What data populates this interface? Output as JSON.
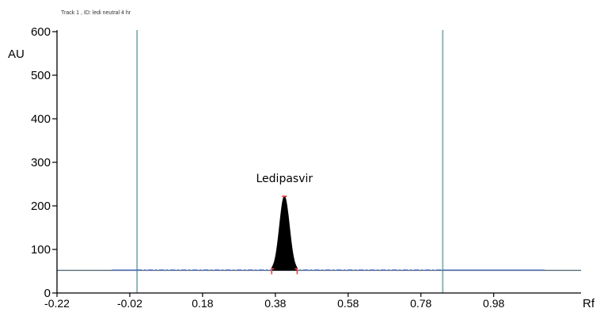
{
  "header": {
    "track_label": "Track  1 , ID: ledi neutral 4 hr"
  },
  "chart_data": {
    "type": "line",
    "title": "",
    "xlabel": "Rf",
    "ylabel": "AU",
    "xlim": [
      -0.22,
      1.22
    ],
    "ylim": [
      0,
      600
    ],
    "x_ticks": [
      -0.22,
      -0.02,
      0.18,
      0.38,
      0.58,
      0.78,
      0.98
    ],
    "x_tick_labels": [
      "-0.22",
      "-0.02",
      "0.18",
      "0.38",
      "0.58",
      "0.78",
      "0.98"
    ],
    "y_ticks": [
      0,
      100,
      200,
      300,
      400,
      500,
      600
    ],
    "y_tick_labels": [
      "0",
      "100",
      "200",
      "300",
      "400",
      "500",
      "600"
    ],
    "grid": false,
    "legend": "none",
    "baseline_au": 52,
    "track_markers_rf": [
      0.0,
      0.84
    ],
    "peak": {
      "name": "Ledipasvir",
      "rf_start": 0.37,
      "rf_max": 0.405,
      "rf_end": 0.44,
      "height_au": 222
    },
    "colors": {
      "axis": "#000000",
      "baseline": "#5b6e7a",
      "marker": "#8fb5b8",
      "trace": "#4a6fd8",
      "peak_fill": "#000000",
      "peak_marks": "#e2484b"
    }
  }
}
